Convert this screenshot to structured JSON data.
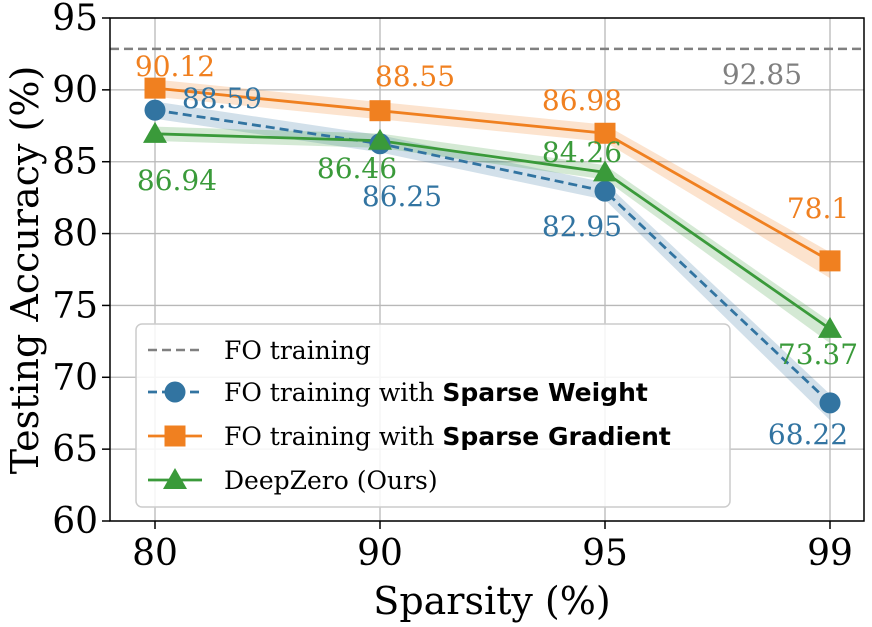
{
  "chart_data": {
    "type": "line",
    "xlabel": "Sparsity (%)",
    "ylabel": "Testing Accuracy (%)",
    "categories": [
      "80",
      "90",
      "95",
      "99"
    ],
    "ylim": [
      60,
      95
    ],
    "yticks": [
      "60",
      "65",
      "70",
      "75",
      "80",
      "85",
      "90",
      "95"
    ],
    "grid": true,
    "legend_position": "lower-left",
    "reference": {
      "name": "FO training",
      "value": 92.85,
      "label": "92.85",
      "color": "#808080"
    },
    "series": [
      {
        "name": "FO training with ",
        "name_bold": "Sparse Weight",
        "values": [
          88.59,
          86.25,
          82.95,
          68.22
        ],
        "labels": [
          "88.59",
          "86.25",
          "82.95",
          "68.22"
        ],
        "color": "#3274a1",
        "marker": "circle",
        "dash": true,
        "band": 0.6
      },
      {
        "name": "FO training with ",
        "name_bold": "Sparse Gradient",
        "values": [
          90.12,
          88.55,
          86.98,
          78.1
        ],
        "labels": [
          "90.12",
          "88.55",
          "86.98",
          "78.1"
        ],
        "color": "#f08020",
        "marker": "square",
        "dash": false,
        "band": 0.6
      },
      {
        "name": "DeepZero (Ours)",
        "name_bold": "",
        "values": [
          86.94,
          86.46,
          84.26,
          73.37
        ],
        "labels": [
          "86.94",
          "86.46",
          "84.26",
          "73.37"
        ],
        "color": "#3a9a3a",
        "marker": "triangle",
        "dash": false,
        "band": 0.5
      }
    ]
  }
}
